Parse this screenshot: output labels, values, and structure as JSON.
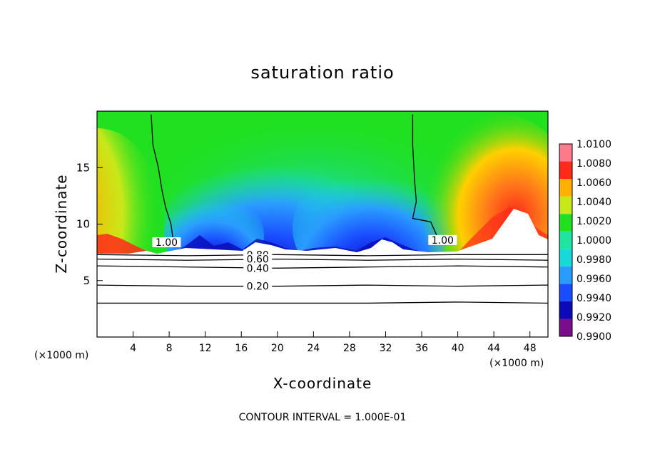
{
  "chart_data": {
    "type": "heatmap",
    "title": "saturation ratio",
    "xlabel": "X-coordinate",
    "ylabel": "Z-coordinate",
    "x_unit_label": "(×1000 m)",
    "xlim": [
      0,
      50
    ],
    "ylim": [
      0,
      20
    ],
    "x_ticks": [
      4,
      8,
      12,
      16,
      20,
      24,
      28,
      32,
      36,
      40,
      44,
      48
    ],
    "y_ticks": [
      5,
      10,
      15
    ],
    "colorbar": {
      "levels": [
        "1.0100",
        "1.0080",
        "1.0060",
        "1.0040",
        "1.0020",
        "1.0000",
        "0.9980",
        "0.9960",
        "0.9940",
        "0.9920",
        "0.9900"
      ],
      "colors": [
        "#7a0d8c",
        "#0a0ab8",
        "#1a4cff",
        "#2a9cff",
        "#18d9d9",
        "#1ee6a0",
        "#20e020",
        "#c8e81a",
        "#ffb000",
        "#ff2a1a",
        "#ff7a8c"
      ]
    },
    "contours": [
      {
        "label": "1.00",
        "x": [
          6,
          6.2,
          6.8,
          7.2,
          7.6,
          8.2,
          8.5
        ],
        "z": [
          19.7,
          17,
          15,
          13,
          11.5,
          10,
          8.2
        ]
      },
      {
        "label": "1.00",
        "x": [
          35,
          35,
          35.2,
          35.4,
          35,
          37,
          38
        ],
        "z": [
          19.7,
          17,
          14,
          12,
          10.5,
          10.2,
          8.4
        ]
      },
      {
        "label": "0.80",
        "x": [
          0,
          10,
          20,
          30,
          40,
          50
        ],
        "z": [
          7.3,
          7.2,
          7.3,
          7.2,
          7.3,
          7.3
        ]
      },
      {
        "label": "0.60",
        "x": [
          0,
          10,
          20,
          30,
          40,
          50
        ],
        "z": [
          6.9,
          6.8,
          6.9,
          6.8,
          6.9,
          6.8
        ]
      },
      {
        "label": "0.40",
        "x": [
          0,
          10,
          20,
          30,
          40,
          50
        ],
        "z": [
          6.3,
          6.2,
          6.1,
          6.2,
          6.3,
          6.2
        ]
      },
      {
        "label": "0.20",
        "x": [
          0,
          10,
          20,
          30,
          40,
          50
        ],
        "z": [
          4.6,
          4.5,
          4.5,
          4.6,
          4.5,
          4.6
        ]
      },
      {
        "label": "",
        "x": [
          0,
          10,
          20,
          30,
          40,
          50
        ],
        "z": [
          3.0,
          3.0,
          3.0,
          3.0,
          3.1,
          3.0
        ]
      }
    ],
    "contour_interval_text": "CONTOUR INTERVAL = 1.000E-01"
  }
}
